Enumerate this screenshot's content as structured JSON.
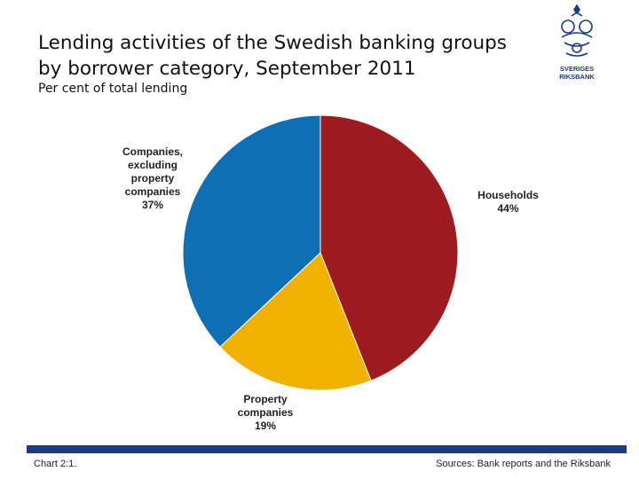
{
  "title_lines": [
    "Lending activities of the Swedish banking groups",
    "by borrower category, September 2011"
  ],
  "subtitle": "Per cent of total lending",
  "logo": {
    "lines": [
      "SVERIGES",
      "RIKSBANK"
    ],
    "color": "#1a3a87"
  },
  "chart_data": {
    "type": "pie",
    "title": "Lending activities of the Swedish banking groups by borrower category, September 2011",
    "subtitle": "Per cent of total lending",
    "slices": [
      {
        "label_lines": [
          "Households"
        ],
        "value_label": "44%",
        "value": 44,
        "color": "#9e1b20"
      },
      {
        "label_lines": [
          "Property",
          "companies"
        ],
        "value_label": "19%",
        "value": 19,
        "color": "#f0b100"
      },
      {
        "label_lines": [
          "Companies,",
          "excluding",
          "property",
          "companies"
        ],
        "value_label": "37%",
        "value": 37,
        "color": "#0f6fb5"
      }
    ],
    "start": "12 o'clock",
    "direction": "clockwise"
  },
  "footer": {
    "chart_number": "Chart 2:1.",
    "sources": "Sources: Bank reports and the Riksbank",
    "bar_color": "#1a3a87"
  }
}
